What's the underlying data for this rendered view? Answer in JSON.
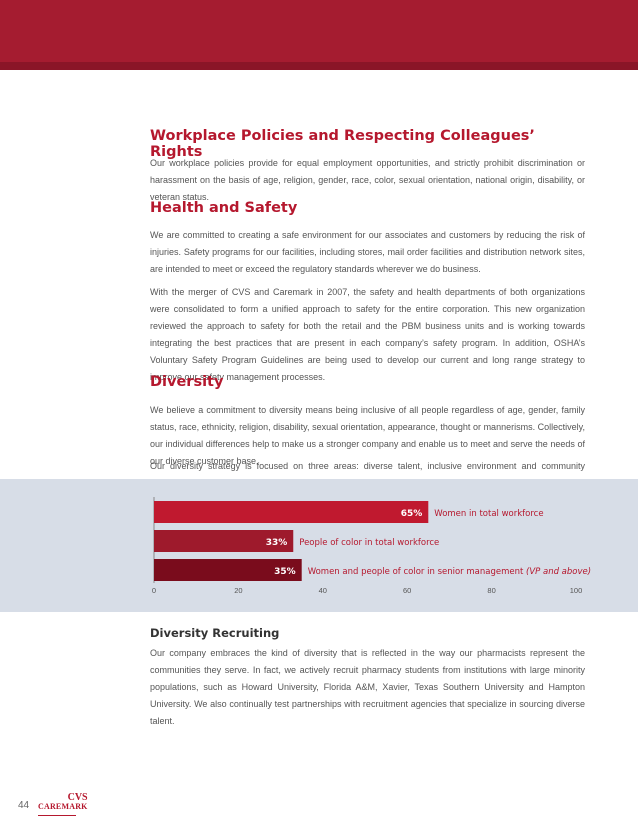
{
  "sections": {
    "workplace": {
      "title": "Workplace Policies and Respecting Colleagues’ Rights",
      "p1": "Our workplace policies provide for equal employment opportunities, and strictly prohibit discrimination or harassment on the basis of age, religion, gender, race, color, sexual orientation, national origin, disability, or veteran status."
    },
    "health": {
      "title": "Health and Safety",
      "p1": "We are committed to creating a safe environment for our associates and customers by reducing the risk of injuries. Safety programs for our facilities, including stores, mail order facilities and distribution network sites, are intended to meet or exceed the regulatory standards wherever we do business.",
      "p2": "With the merger of CVS and Caremark in 2007, the safety and health departments of both organizations were consolidated to form a unified approach to safety for the entire corporation. This new organization reviewed the approach to safety for both the retail and the PBM business units and is working towards integrating the best practices that are present in each company’s safety program. In addition, OSHA’s Voluntary Safety Program Guidelines are being used to develop our current and long range strategy to improve our safety management processes."
    },
    "diversity": {
      "title": "Diversity",
      "p1": "We believe a commitment to diversity means being inclusive of all people regardless of age, gender, family status, race, ethnicity, religion, disability, sexual orientation, appearance, thought or mannerisms. Collectively, our individual differences help to make us a stronger company and enable us to meet and serve the needs of our diverse customer base.",
      "p2": "Our diversity strategy is focused on three areas: diverse talent, inclusive environment and community partners."
    },
    "recruiting": {
      "title": "Diversity Recruiting",
      "p1": "Our company embraces the kind of diversity that is reflected in the way our pharmacists represent the communities they serve. In fact, we actively recruit pharmacy students from institutions with large minority populations, such as Howard University, Florida A&M, Xavier, Texas Southern University and Hampton University.  We also continually test partnerships with recruitment agencies that specialize in sourcing diverse talent."
    }
  },
  "chart_data": {
    "type": "bar",
    "orientation": "horizontal",
    "categories": [
      "Women in total workforce",
      "People of color in total workforce",
      "Women and people of color in senior management"
    ],
    "category_notes": [
      "",
      "",
      "(VP and above)"
    ],
    "values": [
      65,
      33,
      35
    ],
    "value_labels": [
      "65%",
      "33%",
      "35%"
    ],
    "xlim": [
      0,
      100
    ],
    "xticks": [
      0,
      20,
      40,
      60,
      80,
      100
    ],
    "title": "",
    "xlabel": "",
    "ylabel": "",
    "grid": false,
    "colors": [
      "#c0192f",
      "#9e1a2c",
      "#7a0c1c"
    ],
    "label_color": "#b5182e"
  },
  "footer": {
    "page_number": "44",
    "logo_top": "CVS",
    "logo_bottom": "CAREMARK"
  }
}
